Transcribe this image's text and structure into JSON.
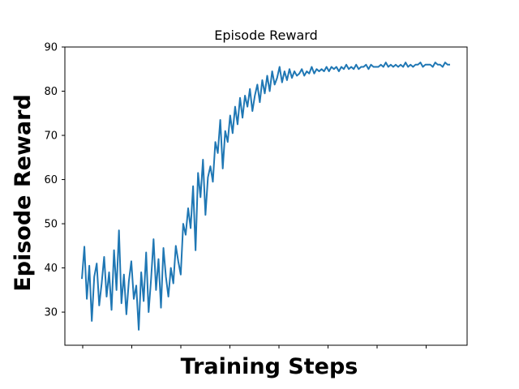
{
  "chart_data": {
    "type": "line",
    "title": "Episode Reward",
    "xlabel": "Training Steps",
    "ylabel": "Episode  Reward",
    "x_tick_labels_shown": false,
    "x_tick_count": 8,
    "ylim": [
      22.5,
      90
    ],
    "yticks": [
      30,
      40,
      50,
      60,
      70,
      80,
      90
    ],
    "grid": false,
    "legend": "none",
    "series": [
      {
        "color": "#1f77b4",
        "values": [
          37.5,
          44.8,
          33.0,
          40.5,
          28.0,
          38.0,
          41.0,
          31.5,
          36.5,
          42.5,
          33.5,
          39.0,
          30.5,
          44.0,
          35.0,
          48.5,
          32.0,
          38.5,
          29.5,
          37.0,
          41.5,
          33.0,
          36.0,
          26.0,
          39.0,
          32.5,
          43.5,
          30.0,
          37.5,
          46.5,
          35.0,
          42.0,
          31.0,
          44.5,
          38.0,
          33.5,
          40.0,
          36.5,
          45.0,
          41.5,
          38.5,
          50.0,
          47.5,
          53.5,
          49.0,
          58.5,
          44.0,
          61.5,
          56.0,
          64.5,
          52.0,
          60.5,
          63.0,
          59.5,
          68.5,
          66.0,
          73.5,
          62.5,
          71.0,
          68.5,
          74.5,
          70.5,
          76.5,
          72.5,
          78.5,
          74.0,
          79.0,
          76.5,
          80.5,
          75.5,
          79.0,
          81.5,
          77.5,
          82.5,
          79.5,
          83.5,
          80.0,
          84.5,
          81.5,
          83.0,
          85.5,
          82.0,
          84.5,
          82.5,
          85.0,
          83.0,
          84.5,
          83.5,
          84.0,
          85.0,
          83.5,
          84.5,
          84.0,
          85.5,
          84.0,
          85.0,
          84.5,
          85.0,
          84.5,
          85.5,
          84.5,
          85.5,
          85.0,
          85.5,
          84.5,
          85.5,
          85.0,
          86.0,
          85.0,
          85.5,
          85.0,
          86.0,
          85.0,
          85.5,
          85.5,
          86.0,
          85.0,
          86.0,
          85.5,
          85.5,
          85.5,
          86.0,
          85.5,
          86.5,
          85.5,
          86.0,
          85.5,
          86.0,
          85.5,
          86.0,
          85.5,
          86.5,
          85.5,
          86.0,
          85.5,
          86.0,
          86.0,
          86.5,
          85.5,
          86.0,
          86.0,
          86.0,
          85.5,
          86.5,
          86.0,
          86.0,
          85.5,
          86.5,
          86.0,
          86.0
        ]
      }
    ]
  }
}
